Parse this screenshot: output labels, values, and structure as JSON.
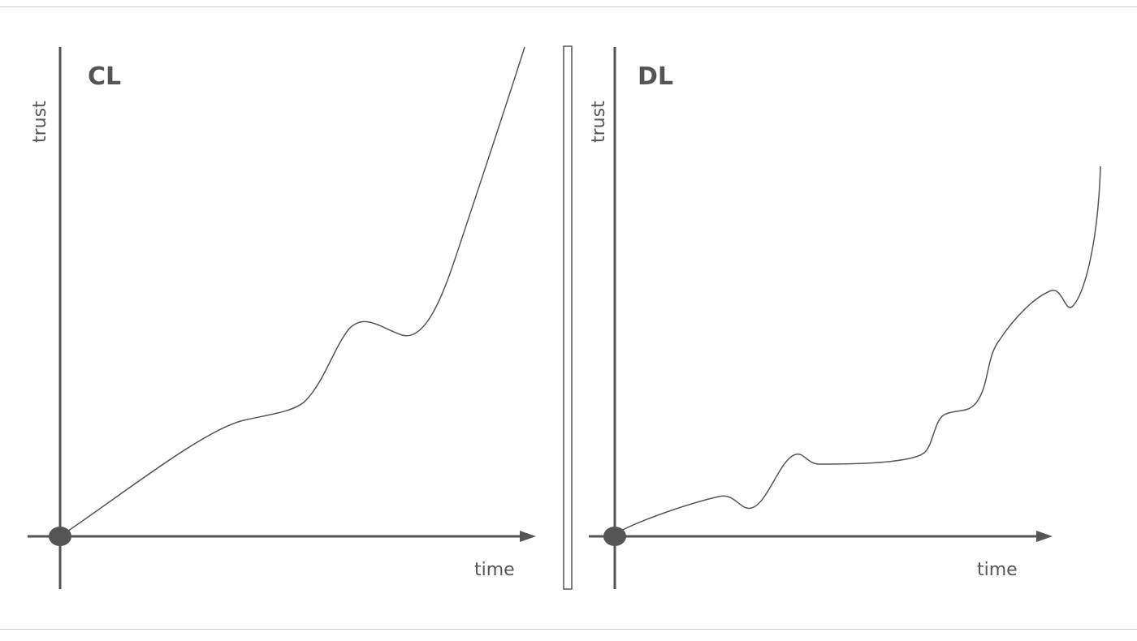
{
  "panels": [
    {
      "title": "CL",
      "y_axis_label": "trust",
      "x_axis_label": "time"
    },
    {
      "title": "DL",
      "y_axis_label": "trust",
      "x_axis_label": "time"
    }
  ],
  "colors": {
    "ink": "#555555",
    "rule": "#c9c9c9",
    "background": "#ffffff"
  }
}
